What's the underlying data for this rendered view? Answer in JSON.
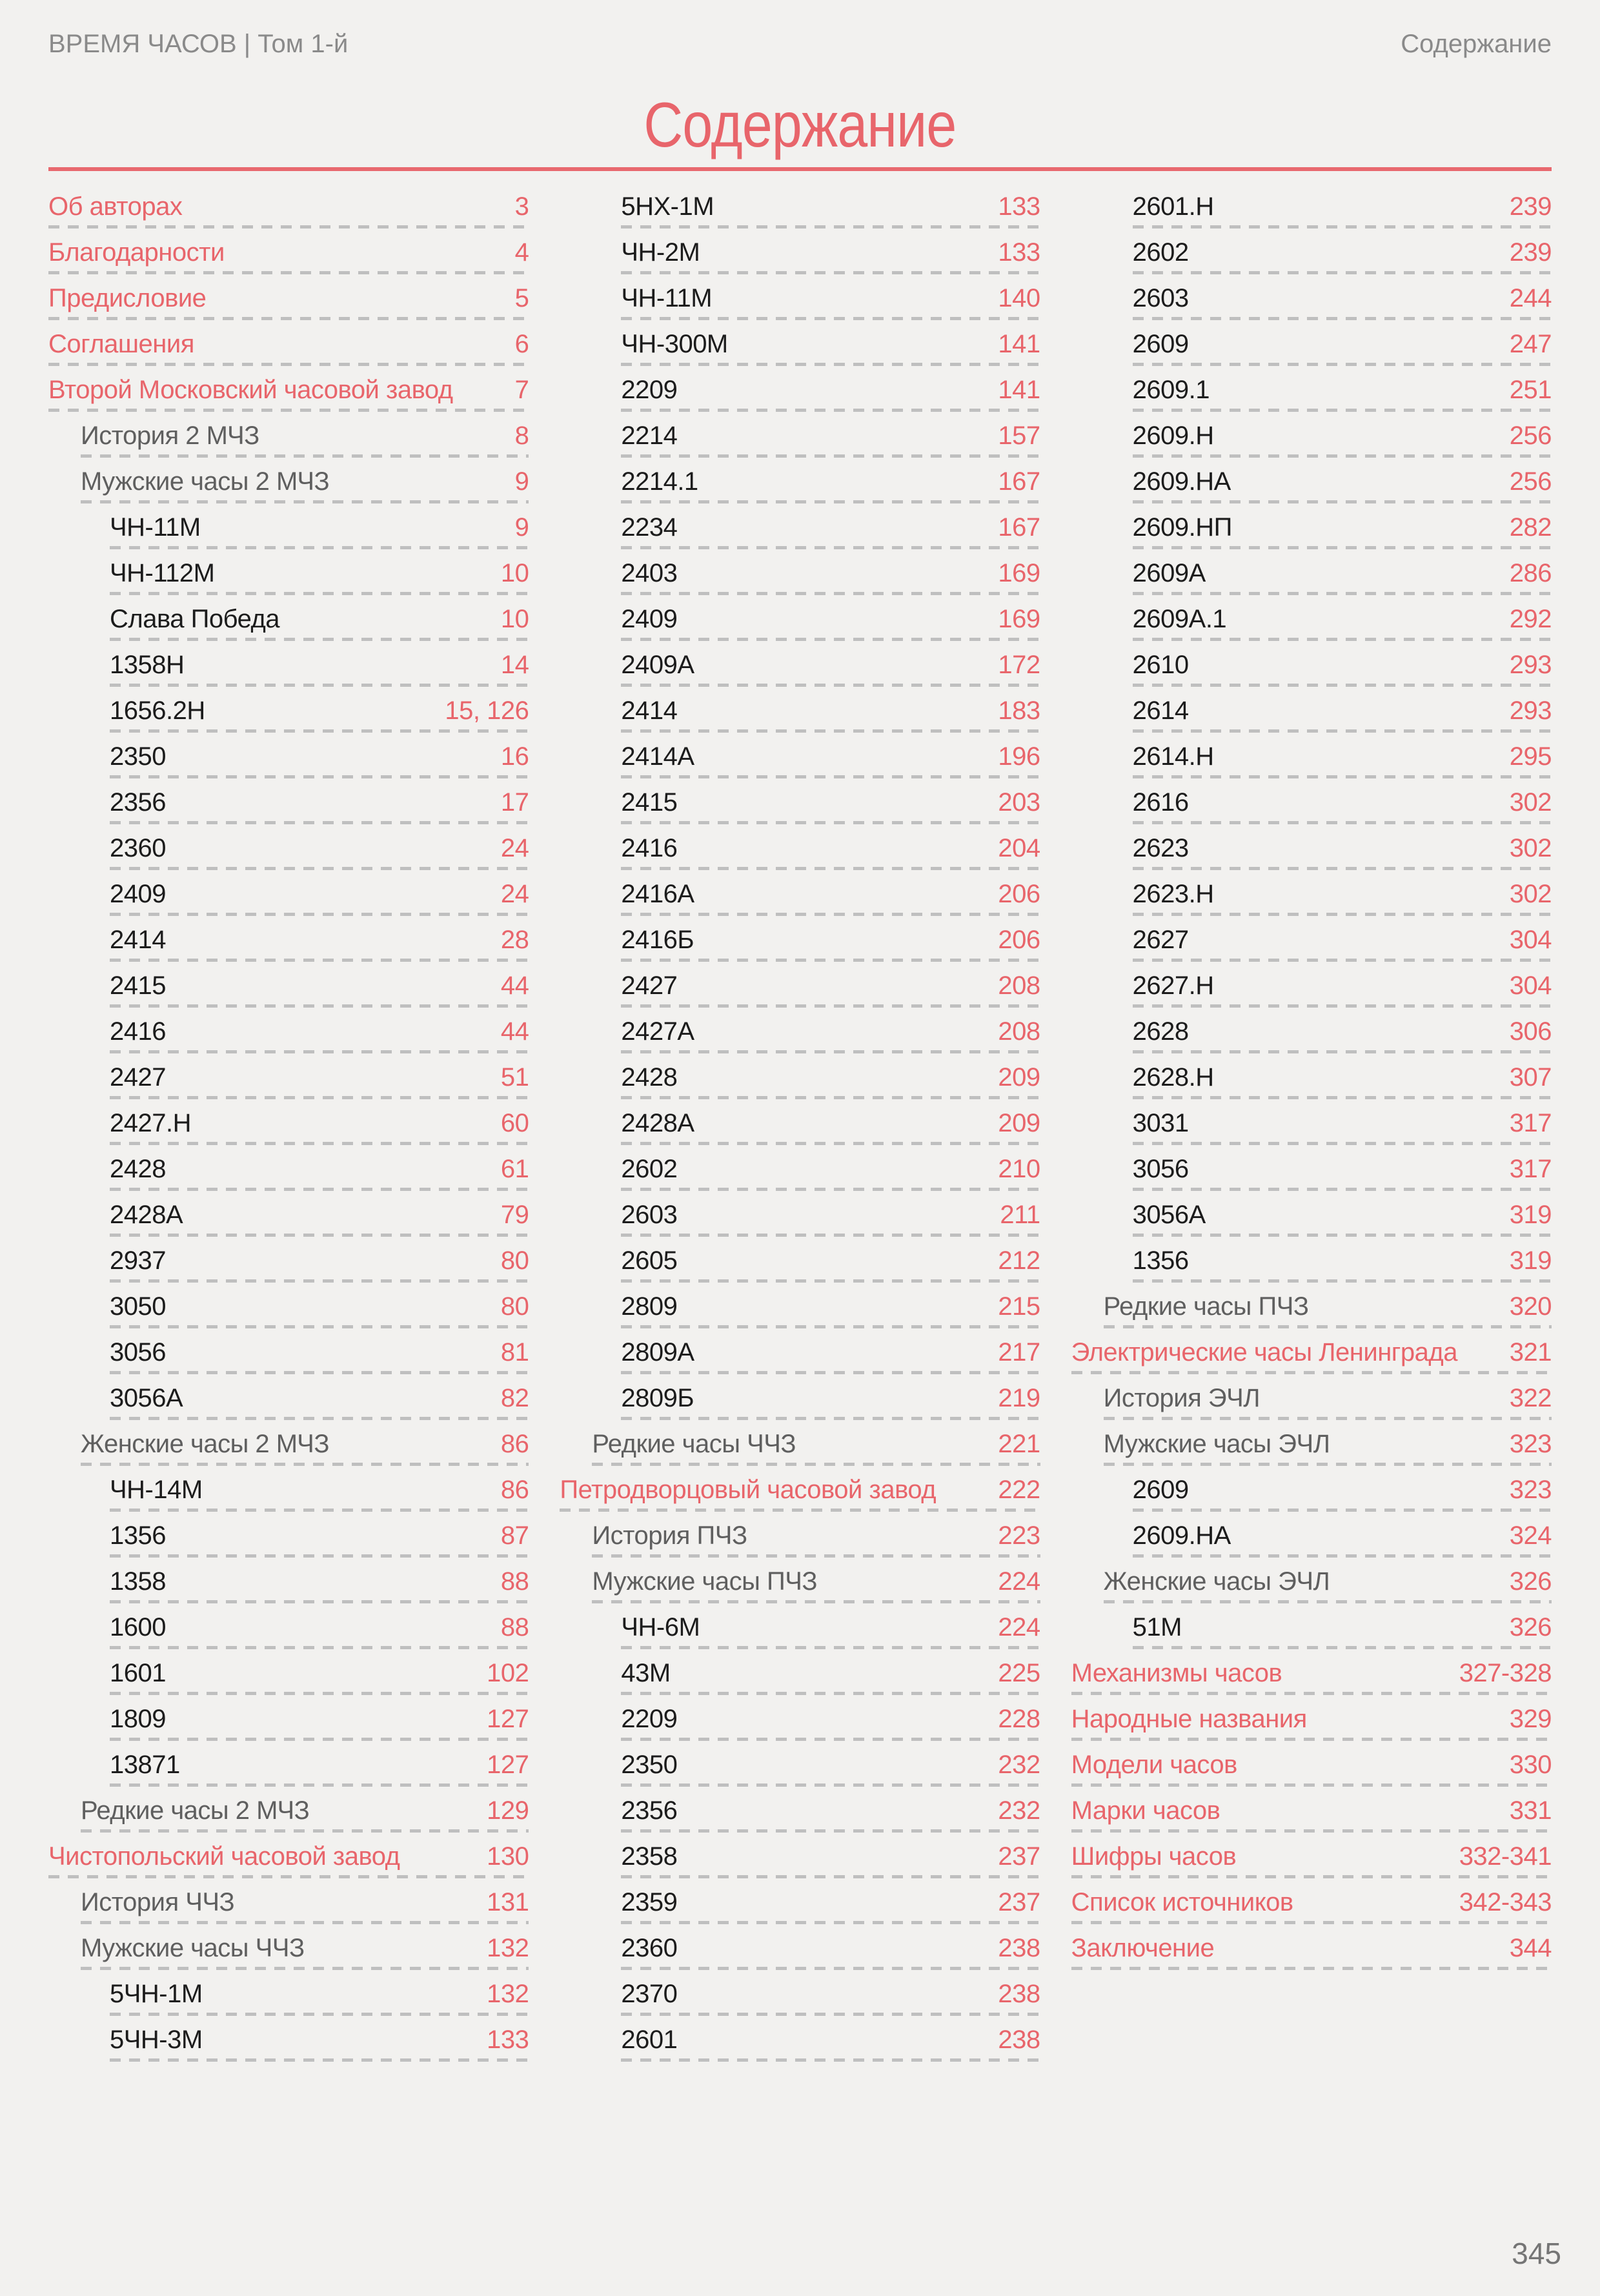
{
  "page": {
    "header_left": "ВРЕМЯ ЧАСОВ | Том 1-й",
    "header_right": "Содержание",
    "title": "Содержание",
    "page_number": "345"
  },
  "colors": {
    "accent": "#e8656b",
    "rule": "#e8696f",
    "dash_leader": "#bfbfbf",
    "header_gray": "#8a8a8a",
    "level1_gray": "#5f5f5f",
    "level2_black": "#1c1c1c",
    "background": "#f2f1ef",
    "page_number_gray": "#757575"
  },
  "toc": {
    "columns": [
      {
        "entries": [
          {
            "label": "Об авторах",
            "page": "3",
            "level": 0
          },
          {
            "label": "Благодарности",
            "page": "4",
            "level": 0
          },
          {
            "label": "Предисловие",
            "page": "5",
            "level": 0
          },
          {
            "label": "Соглашения",
            "page": "6",
            "level": 0
          },
          {
            "label": "Второй Московский часовой завод",
            "page": "7",
            "level": 0
          },
          {
            "label": "История 2 МЧЗ",
            "page": "8",
            "level": 1
          },
          {
            "label": "Мужские часы 2 МЧЗ",
            "page": "9",
            "level": 1
          },
          {
            "label": "ЧН-11М",
            "page": "9",
            "level": 2
          },
          {
            "label": "ЧН-112М",
            "page": "10",
            "level": 2
          },
          {
            "label": "Слава Победа",
            "page": "10",
            "level": 2
          },
          {
            "label": "1358Н",
            "page": "14",
            "level": 2
          },
          {
            "label": "1656.2Н",
            "page": "15, 126",
            "level": 2
          },
          {
            "label": "2350",
            "page": "16",
            "level": 2
          },
          {
            "label": "2356",
            "page": "17",
            "level": 2
          },
          {
            "label": "2360",
            "page": "24",
            "level": 2
          },
          {
            "label": "2409",
            "page": "24",
            "level": 2
          },
          {
            "label": "2414",
            "page": "28",
            "level": 2
          },
          {
            "label": "2415",
            "page": "44",
            "level": 2
          },
          {
            "label": "2416",
            "page": "44",
            "level": 2
          },
          {
            "label": "2427",
            "page": "51",
            "level": 2
          },
          {
            "label": "2427.Н",
            "page": "60",
            "level": 2
          },
          {
            "label": "2428",
            "page": "61",
            "level": 2
          },
          {
            "label": "2428А",
            "page": "79",
            "level": 2
          },
          {
            "label": "2937",
            "page": "80",
            "level": 2
          },
          {
            "label": "3050",
            "page": "80",
            "level": 2
          },
          {
            "label": "3056",
            "page": "81",
            "level": 2
          },
          {
            "label": "3056А",
            "page": "82",
            "level": 2
          },
          {
            "label": "Женские часы 2 МЧЗ",
            "page": "86",
            "level": 1
          },
          {
            "label": "ЧН-14М",
            "page": "86",
            "level": 2
          },
          {
            "label": "1356",
            "page": "87",
            "level": 2
          },
          {
            "label": "1358",
            "page": "88",
            "level": 2
          },
          {
            "label": "1600",
            "page": "88",
            "level": 2
          },
          {
            "label": "1601",
            "page": "102",
            "level": 2
          },
          {
            "label": "1809",
            "page": "127",
            "level": 2
          },
          {
            "label": "13871",
            "page": "127",
            "level": 2
          },
          {
            "label": "Редкие часы 2 МЧЗ",
            "page": "129",
            "level": 1
          },
          {
            "label": "Чистопольский часовой завод",
            "page": "130",
            "level": 0
          },
          {
            "label": "История ЧЧЗ",
            "page": "131",
            "level": 1
          },
          {
            "label": "Мужские часы ЧЧЗ",
            "page": "132",
            "level": 1
          },
          {
            "label": "5ЧН-1М",
            "page": "132",
            "level": 2
          },
          {
            "label": "5ЧН-3М",
            "page": "133",
            "level": 2
          }
        ]
      },
      {
        "entries": [
          {
            "label": "5НХ-1М",
            "page": "133",
            "level": 2
          },
          {
            "label": "ЧН-2М",
            "page": "133",
            "level": 2
          },
          {
            "label": "ЧН-11М",
            "page": "140",
            "level": 2
          },
          {
            "label": "ЧН-300М",
            "page": "141",
            "level": 2
          },
          {
            "label": "2209",
            "page": "141",
            "level": 2
          },
          {
            "label": "2214",
            "page": "157",
            "level": 2
          },
          {
            "label": "2214.1",
            "page": "167",
            "level": 2
          },
          {
            "label": "2234",
            "page": "167",
            "level": 2
          },
          {
            "label": "2403",
            "page": "169",
            "level": 2
          },
          {
            "label": "2409",
            "page": "169",
            "level": 2
          },
          {
            "label": "2409А",
            "page": "172",
            "level": 2
          },
          {
            "label": "2414",
            "page": "183",
            "level": 2
          },
          {
            "label": "2414А",
            "page": "196",
            "level": 2
          },
          {
            "label": "2415",
            "page": "203",
            "level": 2
          },
          {
            "label": "2416",
            "page": "204",
            "level": 2
          },
          {
            "label": "2416А",
            "page": "206",
            "level": 2
          },
          {
            "label": "2416Б",
            "page": "206",
            "level": 2
          },
          {
            "label": "2427",
            "page": "208",
            "level": 2
          },
          {
            "label": "2427А",
            "page": "208",
            "level": 2
          },
          {
            "label": "2428",
            "page": "209",
            "level": 2
          },
          {
            "label": "2428А",
            "page": "209",
            "level": 2
          },
          {
            "label": "2602",
            "page": "210",
            "level": 2
          },
          {
            "label": "2603",
            "page": "211",
            "level": 2
          },
          {
            "label": "2605",
            "page": "212",
            "level": 2
          },
          {
            "label": "2809",
            "page": "215",
            "level": 2
          },
          {
            "label": "2809А",
            "page": "217",
            "level": 2
          },
          {
            "label": "2809Б",
            "page": "219",
            "level": 2
          },
          {
            "label": "Редкие часы ЧЧЗ",
            "page": "221",
            "level": 1
          },
          {
            "label": "Петродворцовый часовой завод",
            "page": "222",
            "level": 0
          },
          {
            "label": "История ПЧЗ",
            "page": "223",
            "level": 1
          },
          {
            "label": "Мужские часы ПЧЗ",
            "page": "224",
            "level": 1
          },
          {
            "label": "ЧН-6М",
            "page": "224",
            "level": 2
          },
          {
            "label": "43М",
            "page": "225",
            "level": 2
          },
          {
            "label": "2209",
            "page": "228",
            "level": 2
          },
          {
            "label": "2350",
            "page": "232",
            "level": 2
          },
          {
            "label": "2356",
            "page": "232",
            "level": 2
          },
          {
            "label": "2358",
            "page": "237",
            "level": 2
          },
          {
            "label": "2359",
            "page": "237",
            "level": 2
          },
          {
            "label": "2360",
            "page": "238",
            "level": 2
          },
          {
            "label": "2370",
            "page": "238",
            "level": 2
          },
          {
            "label": "2601",
            "page": "238",
            "level": 2
          }
        ]
      },
      {
        "entries": [
          {
            "label": "2601.Н",
            "page": "239",
            "level": 2
          },
          {
            "label": "2602",
            "page": "239",
            "level": 2
          },
          {
            "label": "2603",
            "page": "244",
            "level": 2
          },
          {
            "label": "2609",
            "page": "247",
            "level": 2
          },
          {
            "label": "2609.1",
            "page": "251",
            "level": 2
          },
          {
            "label": "2609.Н",
            "page": "256",
            "level": 2
          },
          {
            "label": "2609.НА",
            "page": "256",
            "level": 2
          },
          {
            "label": "2609.НП",
            "page": "282",
            "level": 2
          },
          {
            "label": "2609А",
            "page": "286",
            "level": 2
          },
          {
            "label": "2609А.1",
            "page": "292",
            "level": 2
          },
          {
            "label": "2610",
            "page": "293",
            "level": 2
          },
          {
            "label": "2614",
            "page": "293",
            "level": 2
          },
          {
            "label": "2614.Н",
            "page": "295",
            "level": 2
          },
          {
            "label": "2616",
            "page": "302",
            "level": 2
          },
          {
            "label": "2623",
            "page": "302",
            "level": 2
          },
          {
            "label": "2623.Н",
            "page": "302",
            "level": 2
          },
          {
            "label": "2627",
            "page": "304",
            "level": 2
          },
          {
            "label": "2627.Н",
            "page": "304",
            "level": 2
          },
          {
            "label": "2628",
            "page": "306",
            "level": 2
          },
          {
            "label": "2628.Н",
            "page": "307",
            "level": 2
          },
          {
            "label": "3031",
            "page": "317",
            "level": 2
          },
          {
            "label": "3056",
            "page": "317",
            "level": 2
          },
          {
            "label": "3056А",
            "page": "319",
            "level": 2
          },
          {
            "label": "1356",
            "page": "319",
            "level": 2
          },
          {
            "label": "Редкие часы ПЧЗ",
            "page": "320",
            "level": 1
          },
          {
            "label": "Электрические часы Ленинграда",
            "page": "321",
            "level": 0
          },
          {
            "label": "История ЭЧЛ",
            "page": "322",
            "level": 1
          },
          {
            "label": "Мужские часы ЭЧЛ",
            "page": "323",
            "level": 1
          },
          {
            "label": "2609",
            "page": "323",
            "level": 2
          },
          {
            "label": "2609.НА",
            "page": "324",
            "level": 2
          },
          {
            "label": "Женские часы ЭЧЛ",
            "page": "326",
            "level": 1
          },
          {
            "label": "51М",
            "page": "326",
            "level": 2
          },
          {
            "label": "Механизмы часов",
            "page": "327-328",
            "level": 0
          },
          {
            "label": "Народные названия",
            "page": "329",
            "level": 0
          },
          {
            "label": "Модели часов",
            "page": "330",
            "level": 0
          },
          {
            "label": "Марки часов",
            "page": "331",
            "level": 0
          },
          {
            "label": "Шифры часов",
            "page": "332-341",
            "level": 0
          },
          {
            "label": "Список источников",
            "page": "342-343",
            "level": 0
          },
          {
            "label": "Заключение",
            "page": "344",
            "level": 0
          }
        ]
      }
    ]
  }
}
